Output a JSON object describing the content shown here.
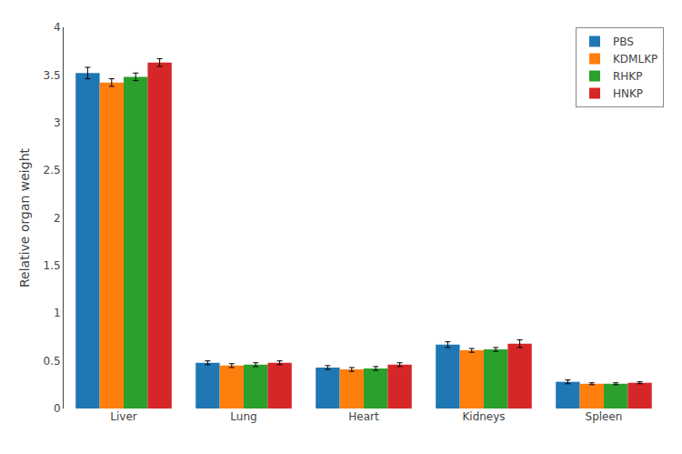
{
  "chart_data": {
    "type": "bar",
    "categories": [
      "Liver",
      "Lung",
      "Heart",
      "Kidneys",
      "Spleen"
    ],
    "series": [
      {
        "name": "PBS",
        "values": [
          3.52,
          0.48,
          0.43,
          0.67,
          0.28
        ],
        "errors": [
          0.06,
          0.02,
          0.02,
          0.03,
          0.02
        ]
      },
      {
        "name": "KDMLKP",
        "values": [
          3.42,
          0.45,
          0.41,
          0.61,
          0.26
        ],
        "errors": [
          0.04,
          0.02,
          0.02,
          0.02,
          0.01
        ]
      },
      {
        "name": "RHKP",
        "values": [
          3.48,
          0.46,
          0.42,
          0.62,
          0.26
        ],
        "errors": [
          0.04,
          0.02,
          0.02,
          0.02,
          0.01
        ]
      },
      {
        "name": "HNKP",
        "values": [
          3.63,
          0.48,
          0.46,
          0.68,
          0.27
        ],
        "errors": [
          0.04,
          0.02,
          0.02,
          0.04,
          0.01
        ]
      }
    ],
    "ylabel": "Relative organ weight",
    "ylim": [
      0,
      4.0
    ],
    "yticks": [
      0,
      0.5,
      1,
      1.5,
      2,
      2.5,
      3,
      3.5,
      4
    ],
    "grid": false,
    "legend": "upper right"
  }
}
